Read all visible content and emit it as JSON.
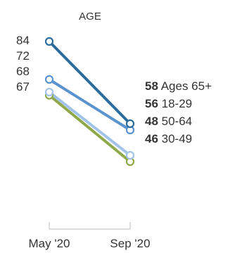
{
  "chart_data": {
    "type": "line",
    "title": "AGE",
    "x": [
      "May '20",
      "Sep '20"
    ],
    "ylim": [
      40,
      90
    ],
    "grid": false,
    "series": [
      {
        "name": "Ages 65+",
        "values": [
          84,
          58
        ],
        "color": "#2b6c9e"
      },
      {
        "name": "18-29",
        "values": [
          72,
          56
        ],
        "color": "#5b93cf"
      },
      {
        "name": "50-64",
        "values": [
          68,
          48
        ],
        "color": "#a3c4ea"
      },
      {
        "name": "30-49",
        "values": [
          67,
          46
        ],
        "color": "#8fa94a"
      }
    ]
  }
}
